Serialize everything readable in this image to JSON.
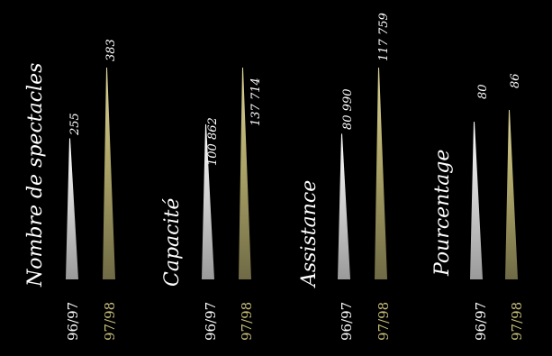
{
  "chart_data": {
    "type": "bar",
    "categories": [
      "96/97",
      "97/98"
    ],
    "colors": {
      "background": "#000000",
      "season_96_97": "#ffffff",
      "season_97_98": "#c8bf7a"
    },
    "groups": [
      {
        "title": "Nombre de spectacles",
        "values": [
          255,
          383
        ],
        "labels": [
          "255",
          "383"
        ]
      },
      {
        "title": "Capacité",
        "values": [
          100862,
          137714
        ],
        "labels": [
          "100 862",
          "137 714"
        ]
      },
      {
        "title": "Assistance",
        "values": [
          80990,
          117759
        ],
        "labels": [
          "80 990",
          "117 759"
        ]
      },
      {
        "title": "Pourcentage",
        "values": [
          80,
          86
        ],
        "labels": [
          "80",
          "86"
        ]
      }
    ]
  }
}
